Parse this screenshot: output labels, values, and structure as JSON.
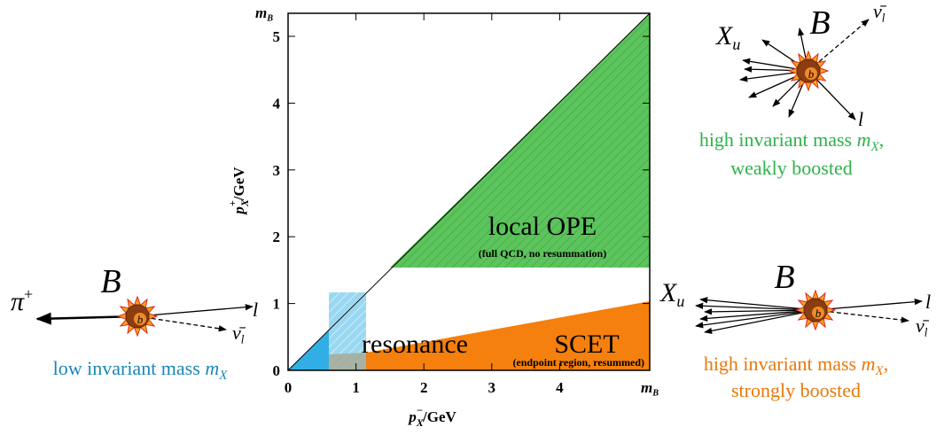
{
  "axes": {
    "x_ticks": [
      "0",
      "1",
      "2",
      "3",
      "4"
    ],
    "y_ticks": [
      "0",
      "1",
      "2",
      "3",
      "4",
      "5"
    ],
    "end_label": {
      "var": "m",
      "sub": "B"
    },
    "x_label": {
      "var": "p",
      "sub": "X",
      "sup": "−",
      "unit": "/GeV"
    },
    "y_label": {
      "var": "p",
      "sub": "X",
      "sup": "+",
      "unit": "/GeV"
    }
  },
  "regions": {
    "ope": {
      "title": "local OPE",
      "note": "(full QCD, no resummation)"
    },
    "resonance": {
      "title": "resonance"
    },
    "scet": {
      "title": "SCET",
      "note": "(endpoint region, resummed)"
    }
  },
  "captions": {
    "high_weak": {
      "line1": "high invariant mass ",
      "var": "m",
      "sub": "X",
      "punct": ",",
      "line2": "weakly boosted"
    },
    "high_strong": {
      "line1": "high invariant mass ",
      "var": "m",
      "sub": "X",
      "punct": ",",
      "line2": "strongly boosted"
    },
    "low": {
      "line1": "low invariant mass ",
      "var": "m",
      "sub": "X"
    }
  },
  "particles": {
    "quark": "b",
    "meson": "B",
    "pion": "π",
    "pion_charge": "+",
    "lepton": "l",
    "neutrino": "ν̄",
    "neutrino_sub": "l",
    "hadron": "X",
    "hadron_sub": "u"
  }
}
